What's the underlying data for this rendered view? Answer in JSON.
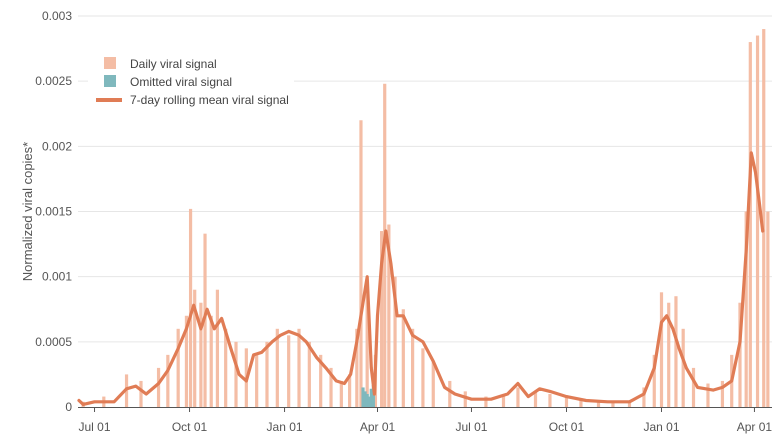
{
  "chart_data": {
    "type": "bar",
    "ylabel": "Normalized viral copies*",
    "xlabel": "",
    "ylim": [
      0,
      0.003
    ],
    "y_ticks": [
      "0",
      "0.0005",
      "0.001",
      "0.0015",
      "0.002",
      "0.0025",
      "0.003"
    ],
    "y_tick_values": [
      0,
      0.0005,
      0.001,
      0.0015,
      0.002,
      0.0025,
      0.003
    ],
    "x_range": [
      "2020-06-15",
      "2022-04-18"
    ],
    "x_ticks": [
      {
        "date": "2020-07-01",
        "label": "Jul 01"
      },
      {
        "date": "2020-10-01",
        "label": "Oct 01"
      },
      {
        "date": "2021-01-01",
        "label": "Jan 01"
      },
      {
        "date": "2021-04-01",
        "label": "Apr 01"
      },
      {
        "date": "2021-07-01",
        "label": "Jul 01"
      },
      {
        "date": "2021-10-01",
        "label": "Oct 01"
      },
      {
        "date": "2022-01-01",
        "label": "Jan 01"
      },
      {
        "date": "2022-04-01",
        "label": "Apr 01"
      }
    ],
    "grid": "horizontal",
    "legend_position": "top-left",
    "colors": {
      "daily": "#f4bda5",
      "omitted": "#7fb8bd",
      "rolling": "#e07c55"
    },
    "series": [
      {
        "name": "Daily viral signal",
        "kind": "bar",
        "points": [
          [
            "2020-06-20",
            4e-05
          ],
          [
            "2020-07-10",
            8e-05
          ],
          [
            "2020-08-01",
            0.00025
          ],
          [
            "2020-08-15",
            0.0002
          ],
          [
            "2020-09-01",
            0.0003
          ],
          [
            "2020-09-10",
            0.0004
          ],
          [
            "2020-09-20",
            0.0006
          ],
          [
            "2020-09-28",
            0.0007
          ],
          [
            "2020-10-02",
            0.00152
          ],
          [
            "2020-10-06",
            0.0009
          ],
          [
            "2020-10-12",
            0.0008
          ],
          [
            "2020-10-16",
            0.00133
          ],
          [
            "2020-10-22",
            0.0007
          ],
          [
            "2020-10-28",
            0.0009
          ],
          [
            "2020-11-05",
            0.0006
          ],
          [
            "2020-11-15",
            0.0005
          ],
          [
            "2020-11-25",
            0.00045
          ],
          [
            "2020-12-05",
            0.0004
          ],
          [
            "2020-12-15",
            0.0005
          ],
          [
            "2020-12-25",
            0.0006
          ],
          [
            "2021-01-05",
            0.00055
          ],
          [
            "2021-01-15",
            0.0006
          ],
          [
            "2021-01-25",
            0.0005
          ],
          [
            "2021-02-05",
            0.0004
          ],
          [
            "2021-02-15",
            0.0003
          ],
          [
            "2021-02-25",
            0.0002
          ],
          [
            "2021-03-05",
            0.00025
          ],
          [
            "2021-03-12",
            0.0006
          ],
          [
            "2021-03-16",
            0.0022
          ],
          [
            "2021-03-22",
            0.00095
          ],
          [
            "2021-03-30",
            0.0004
          ],
          [
            "2021-04-05",
            0.00135
          ],
          [
            "2021-04-08",
            0.00248
          ],
          [
            "2021-04-12",
            0.0014
          ],
          [
            "2021-04-18",
            0.001
          ],
          [
            "2021-04-26",
            0.00075
          ],
          [
            "2021-05-05",
            0.0006
          ],
          [
            "2021-05-15",
            0.00045
          ],
          [
            "2021-05-25",
            0.00035
          ],
          [
            "2021-06-10",
            0.0002
          ],
          [
            "2021-06-25",
            0.00012
          ],
          [
            "2021-07-15",
            8e-05
          ],
          [
            "2021-08-01",
            0.0001
          ],
          [
            "2021-08-15",
            0.00015
          ],
          [
            "2021-09-01",
            0.00012
          ],
          [
            "2021-09-15",
            0.0001
          ],
          [
            "2021-10-01",
            9e-05
          ],
          [
            "2021-10-15",
            6e-05
          ],
          [
            "2021-11-01",
            5e-05
          ],
          [
            "2021-11-15",
            4e-05
          ],
          [
            "2021-12-01",
            4e-05
          ],
          [
            "2021-12-15",
            0.00015
          ],
          [
            "2021-12-25",
            0.0004
          ],
          [
            "2022-01-01",
            0.00088
          ],
          [
            "2022-01-08",
            0.0008
          ],
          [
            "2022-01-15",
            0.00085
          ],
          [
            "2022-01-22",
            0.0006
          ],
          [
            "2022-02-01",
            0.0003
          ],
          [
            "2022-02-15",
            0.00018
          ],
          [
            "2022-03-01",
            0.0002
          ],
          [
            "2022-03-10",
            0.0004
          ],
          [
            "2022-03-18",
            0.0008
          ],
          [
            "2022-03-24",
            0.0015
          ],
          [
            "2022-03-28",
            0.0028
          ],
          [
            "2022-04-04",
            0.00285
          ],
          [
            "2022-04-10",
            0.0029
          ],
          [
            "2022-04-14",
            0.0015
          ]
        ]
      },
      {
        "name": "Omitted viral signal",
        "kind": "bar",
        "points": [
          [
            "2021-03-18",
            0.00015
          ],
          [
            "2021-03-20",
            0.00012
          ],
          [
            "2021-03-22",
            0.0001
          ],
          [
            "2021-03-24",
            8e-05
          ],
          [
            "2021-03-26",
            0.00014
          ],
          [
            "2021-03-28",
            0.00017
          ]
        ]
      },
      {
        "name": "7-day rolling mean viral signal",
        "kind": "line",
        "points": [
          [
            "2020-06-16",
            5e-05
          ],
          [
            "2020-06-20",
            2e-05
          ],
          [
            "2020-07-01",
            4e-05
          ],
          [
            "2020-07-20",
            4e-05
          ],
          [
            "2020-08-01",
            0.00014
          ],
          [
            "2020-08-10",
            0.00016
          ],
          [
            "2020-08-20",
            0.0001
          ],
          [
            "2020-09-01",
            0.00018
          ],
          [
            "2020-09-10",
            0.00028
          ],
          [
            "2020-09-20",
            0.00045
          ],
          [
            "2020-09-28",
            0.0006
          ],
          [
            "2020-10-05",
            0.00078
          ],
          [
            "2020-10-12",
            0.0006
          ],
          [
            "2020-10-18",
            0.00075
          ],
          [
            "2020-10-25",
            0.0006
          ],
          [
            "2020-11-01",
            0.00068
          ],
          [
            "2020-11-10",
            0.00045
          ],
          [
            "2020-11-18",
            0.00025
          ],
          [
            "2020-11-25",
            0.0002
          ],
          [
            "2020-12-02",
            0.0004
          ],
          [
            "2020-12-10",
            0.00042
          ],
          [
            "2020-12-20",
            0.0005
          ],
          [
            "2020-12-28",
            0.00055
          ],
          [
            "2021-01-05",
            0.00058
          ],
          [
            "2021-01-15",
            0.00055
          ],
          [
            "2021-01-22",
            0.0005
          ],
          [
            "2021-02-01",
            0.00038
          ],
          [
            "2021-02-10",
            0.0003
          ],
          [
            "2021-02-20",
            0.0002
          ],
          [
            "2021-02-28",
            0.00018
          ],
          [
            "2021-03-06",
            0.00025
          ],
          [
            "2021-03-12",
            0.0005
          ],
          [
            "2021-03-18",
            0.0008
          ],
          [
            "2021-03-22",
            0.001
          ],
          [
            "2021-03-26",
            0.0003
          ],
          [
            "2021-03-29",
            0.0001
          ],
          [
            "2021-04-01",
            0.0007
          ],
          [
            "2021-04-05",
            0.0011
          ],
          [
            "2021-04-09",
            0.00135
          ],
          [
            "2021-04-14",
            0.0011
          ],
          [
            "2021-04-20",
            0.0007
          ],
          [
            "2021-04-26",
            0.0007
          ],
          [
            "2021-05-05",
            0.00055
          ],
          [
            "2021-05-15",
            0.0005
          ],
          [
            "2021-05-25",
            0.00035
          ],
          [
            "2021-06-05",
            0.00015
          ],
          [
            "2021-06-15",
            0.0001
          ],
          [
            "2021-07-01",
            6e-05
          ],
          [
            "2021-07-20",
            6e-05
          ],
          [
            "2021-08-05",
            0.0001
          ],
          [
            "2021-08-15",
            0.00018
          ],
          [
            "2021-08-25",
            8e-05
          ],
          [
            "2021-09-05",
            0.00014
          ],
          [
            "2021-09-15",
            0.00012
          ],
          [
            "2021-10-01",
            8e-05
          ],
          [
            "2021-10-20",
            5e-05
          ],
          [
            "2021-11-10",
            4e-05
          ],
          [
            "2021-12-01",
            4e-05
          ],
          [
            "2021-12-15",
            0.0001
          ],
          [
            "2021-12-25",
            0.0003
          ],
          [
            "2022-01-01",
            0.00065
          ],
          [
            "2022-01-06",
            0.0007
          ],
          [
            "2022-01-12",
            0.0006
          ],
          [
            "2022-01-18",
            0.00045
          ],
          [
            "2022-01-25",
            0.0003
          ],
          [
            "2022-02-05",
            0.00015
          ],
          [
            "2022-02-20",
            0.00013
          ],
          [
            "2022-03-01",
            0.00015
          ],
          [
            "2022-03-10",
            0.0002
          ],
          [
            "2022-03-18",
            0.0005
          ],
          [
            "2022-03-24",
            0.0012
          ],
          [
            "2022-03-29",
            0.00195
          ],
          [
            "2022-04-02",
            0.0018
          ],
          [
            "2022-04-06",
            0.00155
          ],
          [
            "2022-04-09",
            0.00135
          ]
        ]
      }
    ]
  }
}
